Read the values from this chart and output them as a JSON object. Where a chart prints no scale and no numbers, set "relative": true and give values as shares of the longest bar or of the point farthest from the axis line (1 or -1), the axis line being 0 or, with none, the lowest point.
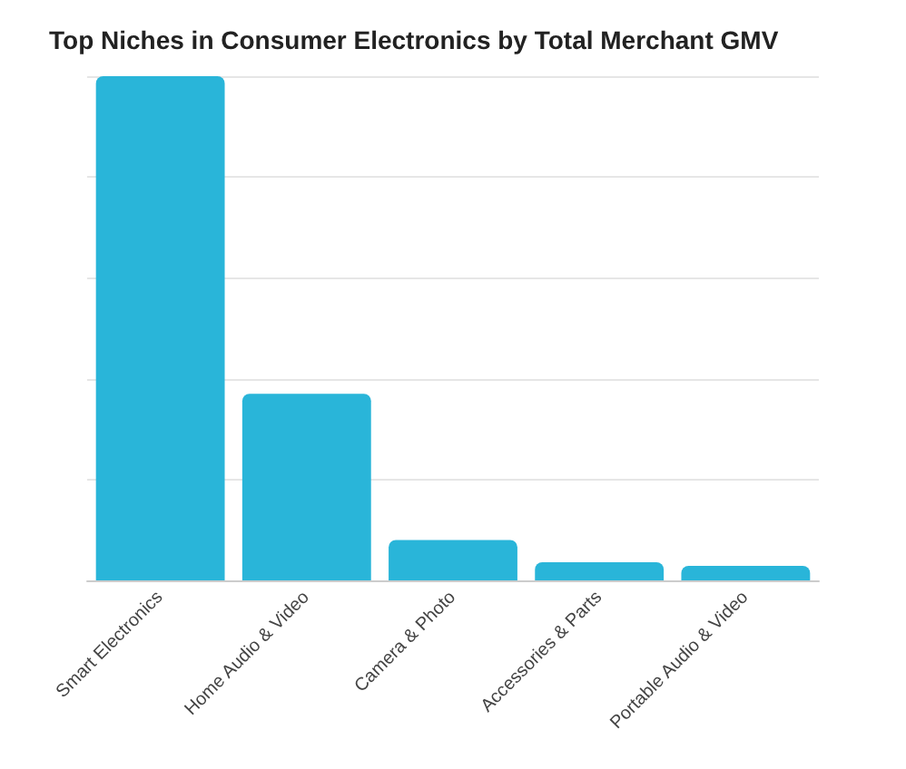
{
  "chart_data": {
    "type": "bar",
    "title": "Top Niches in Consumer Electronics by Total Merchant GMV",
    "categories": [
      "Smart Electronics",
      "Home Audio & Video",
      "Camera & Photo",
      "Accessories & Parts",
      "Portable Audio & Video"
    ],
    "values": [
      1,
      0.37,
      0.08,
      0.036,
      0.029
    ],
    "color": "#29b5d9",
    "relative": true,
    "grid": "y"
  }
}
